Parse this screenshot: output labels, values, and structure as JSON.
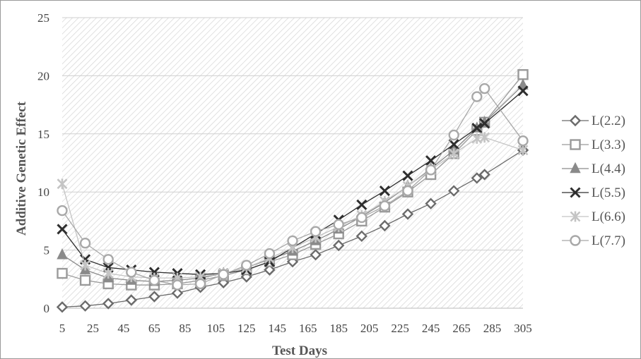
{
  "chart_data": {
    "type": "line",
    "title": "",
    "xlabel": "Test Days",
    "ylabel": "Additive  Genetic Effect",
    "x": [
      5,
      20,
      35,
      50,
      65,
      80,
      95,
      110,
      125,
      140,
      155,
      170,
      185,
      200,
      215,
      230,
      245,
      260,
      275,
      280,
      305
    ],
    "xticks": [
      5,
      25,
      45,
      65,
      85,
      105,
      125,
      145,
      165,
      185,
      205,
      225,
      245,
      265,
      285,
      305
    ],
    "xlim": [
      5,
      305
    ],
    "yticks": [
      0,
      5,
      10,
      15,
      20,
      25
    ],
    "ylim": [
      0,
      25
    ],
    "grid": true,
    "legend_position": "right",
    "series": [
      {
        "name": "L(2.2)",
        "marker": "diamond",
        "color": "#6b6b6b",
        "values": [
          0.1,
          0.2,
          0.4,
          0.7,
          1.0,
          1.3,
          1.8,
          2.2,
          2.7,
          3.3,
          4.0,
          4.6,
          5.4,
          6.2,
          7.1,
          8.1,
          9.0,
          10.1,
          11.2,
          11.5,
          13.6
        ]
      },
      {
        "name": "L(3.3)",
        "marker": "square",
        "color": "#9a9a9a",
        "values": [
          3.0,
          2.4,
          2.1,
          2.0,
          2.0,
          2.1,
          2.4,
          2.8,
          3.3,
          4.0,
          4.6,
          5.5,
          6.4,
          7.5,
          8.7,
          10.0,
          11.5,
          13.3,
          15.3,
          16.0,
          20.1
        ]
      },
      {
        "name": "L(4.4)",
        "marker": "triangle",
        "color": "#8a8a8a",
        "values": [
          4.6,
          3.3,
          2.6,
          2.4,
          2.3,
          2.4,
          2.6,
          3.0,
          3.5,
          4.2,
          4.9,
          5.8,
          6.8,
          7.9,
          9.1,
          10.5,
          12.0,
          13.6,
          15.5,
          16.0,
          19.2
        ]
      },
      {
        "name": "L(5.5)",
        "marker": "cross",
        "color": "#2e2e2e",
        "values": [
          6.8,
          4.2,
          3.5,
          3.3,
          3.1,
          3.0,
          2.9,
          3.0,
          3.3,
          4.0,
          5.2,
          6.4,
          7.6,
          8.9,
          10.1,
          11.4,
          12.7,
          14.1,
          15.5,
          15.9,
          18.7
        ]
      },
      {
        "name": "L(6.6)",
        "marker": "star",
        "color": "#c4c4c4",
        "values": [
          10.7,
          3.7,
          3.0,
          2.7,
          2.6,
          2.6,
          2.7,
          3.0,
          3.5,
          4.3,
          5.2,
          6.1,
          7.0,
          8.0,
          9.2,
          10.5,
          11.9,
          13.3,
          14.6,
          14.7,
          13.6
        ]
      },
      {
        "name": "L(7.7)",
        "marker": "circle",
        "color": "#a8a8a8",
        "values": [
          8.4,
          5.6,
          4.2,
          3.1,
          2.4,
          2.0,
          2.1,
          2.9,
          3.7,
          4.7,
          5.8,
          6.6,
          7.2,
          7.8,
          8.8,
          10.1,
          11.9,
          14.9,
          18.2,
          18.9,
          14.4
        ]
      }
    ]
  }
}
